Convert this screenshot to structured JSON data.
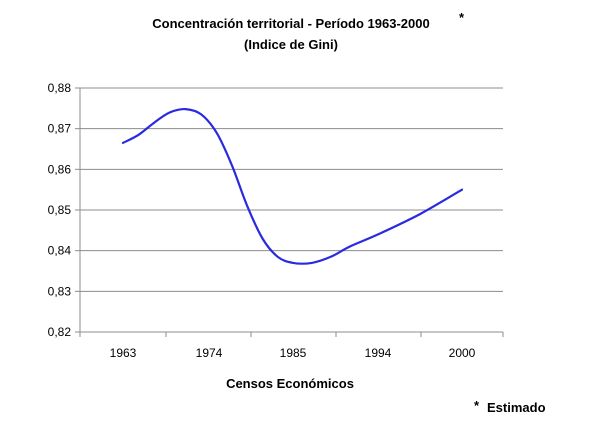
{
  "chart_data": {
    "type": "line",
    "title": "Concentración territorial - Período 1963-2000",
    "title_marker": "*",
    "subtitle": "(Indice de Gini)",
    "xlabel": "Censos Económicos",
    "ylabel": "",
    "categories": [
      "1963",
      "1974",
      "1985",
      "1994",
      "2000"
    ],
    "ylim": [
      0.82,
      0.88
    ],
    "yticks": [
      "0,82",
      "0,83",
      "0,84",
      "0,85",
      "0,86",
      "0,87",
      "0,88"
    ],
    "grid": true,
    "series": [
      {
        "color": "#2a2ae0",
        "points": [
          {
            "x": 1963,
            "y": 0.8665
          },
          {
            "x": 1965,
            "y": 0.8685
          },
          {
            "x": 1967,
            "y": 0.8715
          },
          {
            "x": 1969,
            "y": 0.874
          },
          {
            "x": 1971,
            "y": 0.8748
          },
          {
            "x": 1973,
            "y": 0.8735
          },
          {
            "x": 1975,
            "y": 0.869
          },
          {
            "x": 1977,
            "y": 0.861
          },
          {
            "x": 1979,
            "y": 0.851
          },
          {
            "x": 1981,
            "y": 0.843
          },
          {
            "x": 1983,
            "y": 0.8385
          },
          {
            "x": 1985,
            "y": 0.837
          },
          {
            "x": 1987,
            "y": 0.837
          },
          {
            "x": 1989,
            "y": 0.8385
          },
          {
            "x": 1991,
            "y": 0.841
          },
          {
            "x": 1994,
            "y": 0.844
          },
          {
            "x": 1997,
            "y": 0.849
          },
          {
            "x": 2000,
            "y": 0.855
          }
        ]
      }
    ]
  },
  "footnote": {
    "marker": "*",
    "text": "Estimado"
  }
}
